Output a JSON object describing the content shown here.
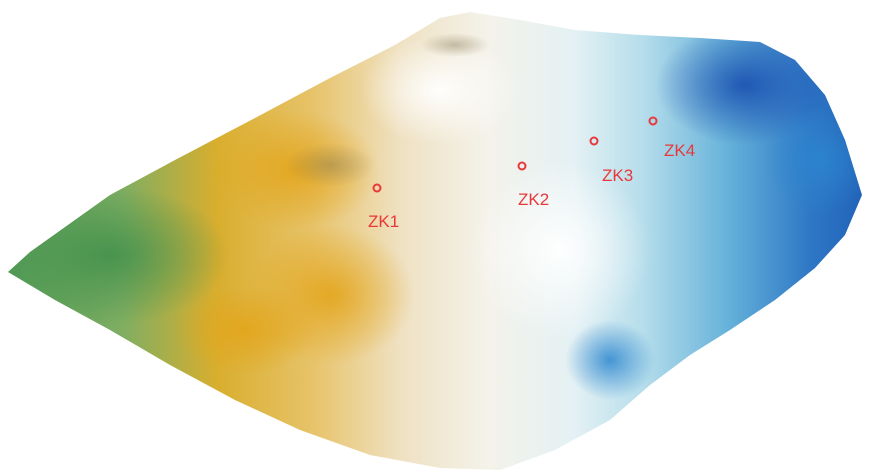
{
  "terrain": {
    "colors": {
      "green": "#5f9e5e",
      "yellow": "#e5b12a",
      "cream": "#efe3c6",
      "white": "#f6f6f4",
      "light_blue": "#cfe8f2",
      "mid_blue": "#5fb0d8",
      "deep_blue": "#1e5fb8"
    }
  },
  "boreholes": [
    {
      "label": "ZK1",
      "marker_color": "#e8383a"
    },
    {
      "label": "ZK2",
      "marker_color": "#e8383a"
    },
    {
      "label": "ZK3",
      "marker_color": "#e8383a"
    },
    {
      "label": "ZK4",
      "marker_color": "#e8383a"
    }
  ]
}
